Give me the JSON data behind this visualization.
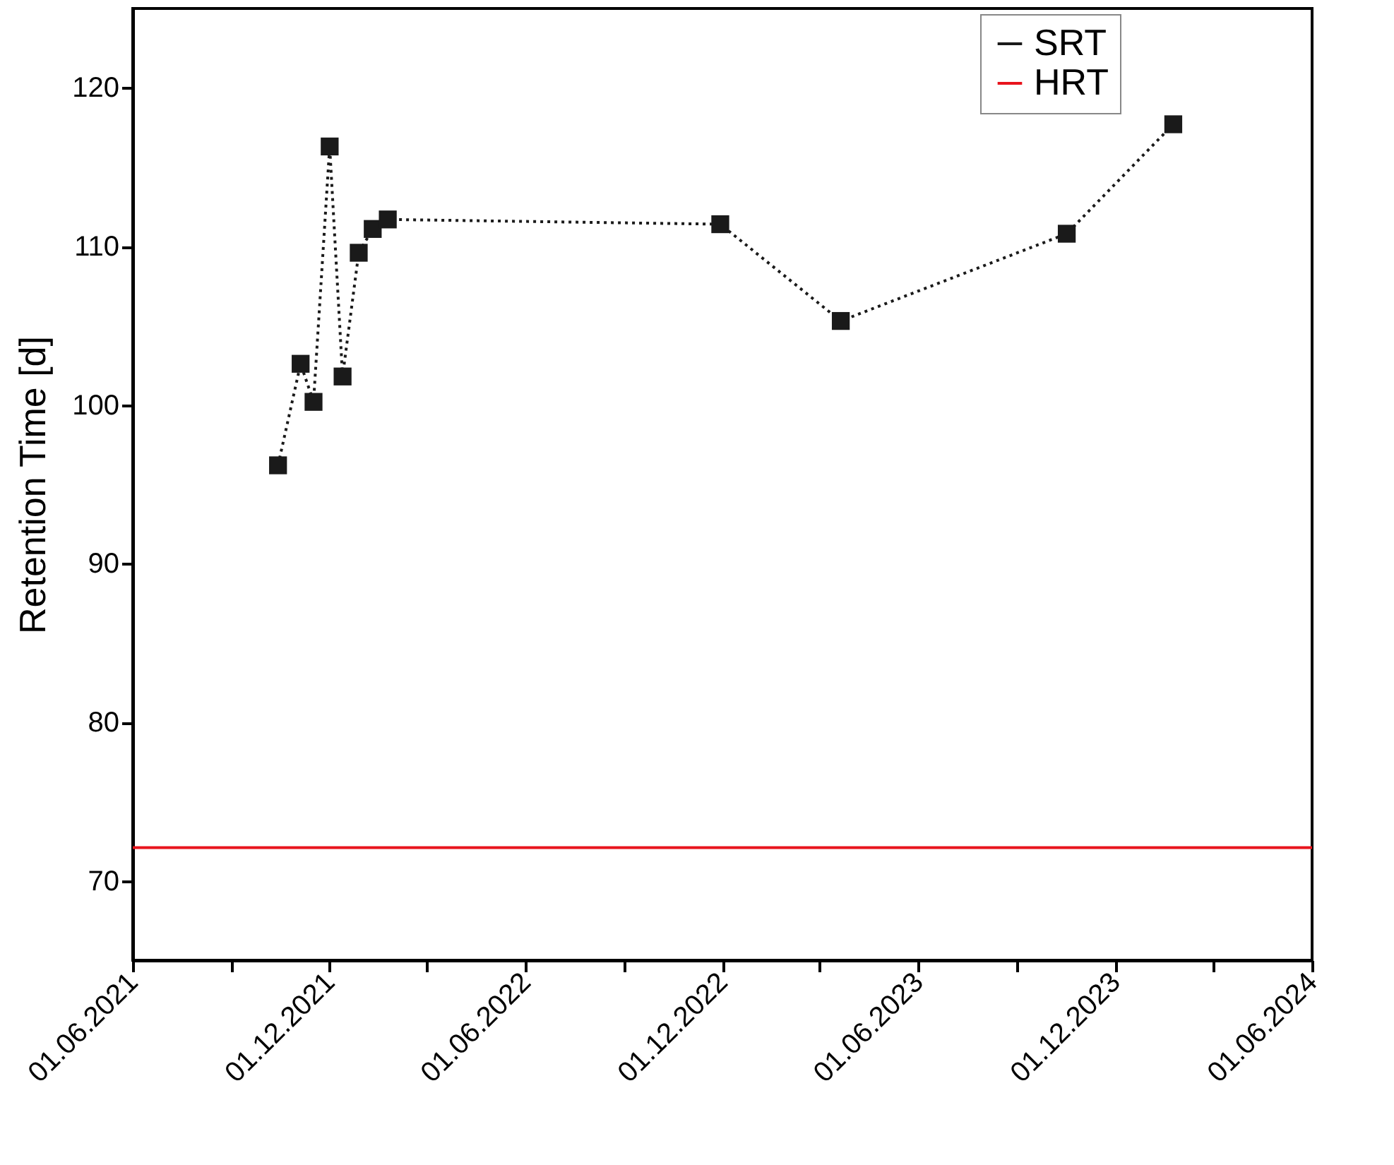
{
  "chart_data": {
    "type": "line",
    "ylabel": "Retention Time [d]",
    "xlim": [
      "2021-06-01",
      "2024-06-01"
    ],
    "xticks": [
      {
        "value": "2021-06-01",
        "label": "01.06.2021"
      },
      {
        "value": "2021-09-01",
        "label": null
      },
      {
        "value": "2021-12-01",
        "label": "01.12.2021"
      },
      {
        "value": "2022-03-01",
        "label": null
      },
      {
        "value": "2022-06-01",
        "label": "01.06.2022"
      },
      {
        "value": "2022-09-01",
        "label": null
      },
      {
        "value": "2022-12-01",
        "label": "01.12.2022"
      },
      {
        "value": "2023-03-01",
        "label": null
      },
      {
        "value": "2023-06-01",
        "label": "01.06.2023"
      },
      {
        "value": "2023-09-01",
        "label": null
      },
      {
        "value": "2023-12-01",
        "label": "01.12.2023"
      },
      {
        "value": "2024-03-01",
        "label": null
      },
      {
        "value": "2024-06-01",
        "label": "01.06.2024"
      }
    ],
    "ylim": [
      65,
      125
    ],
    "yticks": [
      70,
      80,
      90,
      100,
      110,
      120
    ],
    "x": [
      "2021-10-14",
      "2021-11-04",
      "2021-11-16",
      "2021-12-01",
      "2021-12-13",
      "2021-12-28",
      "2022-01-10",
      "2022-01-24",
      "2022-11-29",
      "2023-03-21",
      "2023-10-17",
      "2024-01-24"
    ],
    "series": [
      {
        "name": "SRT",
        "color": "#1a1a1a",
        "values": [
          96.2,
          102.6,
          100.2,
          116.3,
          101.8,
          109.6,
          111.1,
          111.7,
          111.4,
          105.3,
          110.8,
          117.7
        ]
      }
    ],
    "ref_lines": [
      {
        "axis": "y",
        "value": 72.1,
        "label": "HRT",
        "color": "#e8141c",
        "line_style": "solid"
      }
    ],
    "marker": "square",
    "line_style": "dotted",
    "legend": "top right",
    "grid": false
  }
}
